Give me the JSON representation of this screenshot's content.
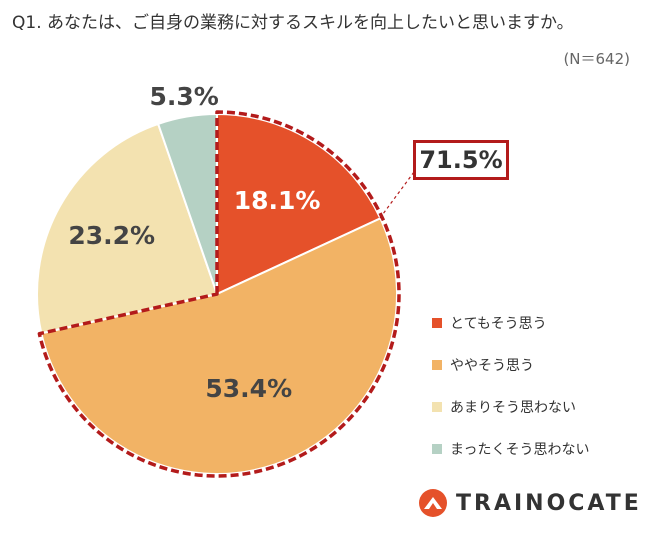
{
  "header": {
    "question": "Q1. あなたは、ご自身の業務に対するスキルを向上したいと思いますか。",
    "sample": "(N＝642)"
  },
  "chart_data": {
    "type": "pie",
    "slices": [
      {
        "label": "とてもそう思う",
        "value": 18.1,
        "display": "18.1%",
        "color": "#e5512a"
      },
      {
        "label": "ややそう思う",
        "value": 53.4,
        "display": "53.4%",
        "color": "#f2b365"
      },
      {
        "label": "あまりそう思わない",
        "value": 23.2,
        "display": "23.2%",
        "color": "#f3e2b0"
      },
      {
        "label": "まったくそう思わない",
        "value": 5.3,
        "display": "5.3%",
        "color": "#b5d1c4"
      }
    ],
    "highlight": {
      "value": "71.5%",
      "color": "#b31b1b"
    },
    "legend_position": "right"
  },
  "logo": {
    "text": "TRAINOCATE",
    "color": "#e5512a"
  }
}
